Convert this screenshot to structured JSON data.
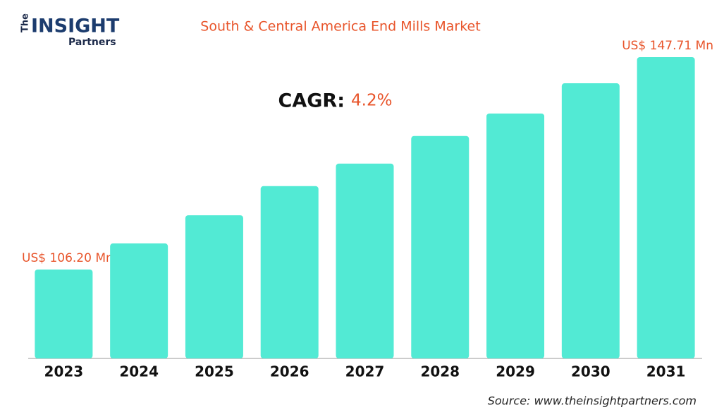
{
  "logo": {
    "prefix": "The",
    "name": "INSIGHT",
    "suffix": "Partners"
  },
  "chart_data": {
    "type": "bar",
    "title": "South & Central America End Mills Market",
    "categories": [
      "2023",
      "2024",
      "2025",
      "2026",
      "2027",
      "2028",
      "2029",
      "2030",
      "2031"
    ],
    "values": [
      106.2,
      111.3,
      116.8,
      122.5,
      126.9,
      132.3,
      136.7,
      142.6,
      147.71
    ],
    "value_labels": [
      "US$ 106.20 Mn",
      null,
      null,
      null,
      null,
      null,
      null,
      null,
      "US$ 147.71 Mn"
    ],
    "color": "#52ead4",
    "cagr_label": "CAGR:",
    "cagr_value": "4.2%",
    "source": "Source: www.theinsightpartners.com"
  }
}
